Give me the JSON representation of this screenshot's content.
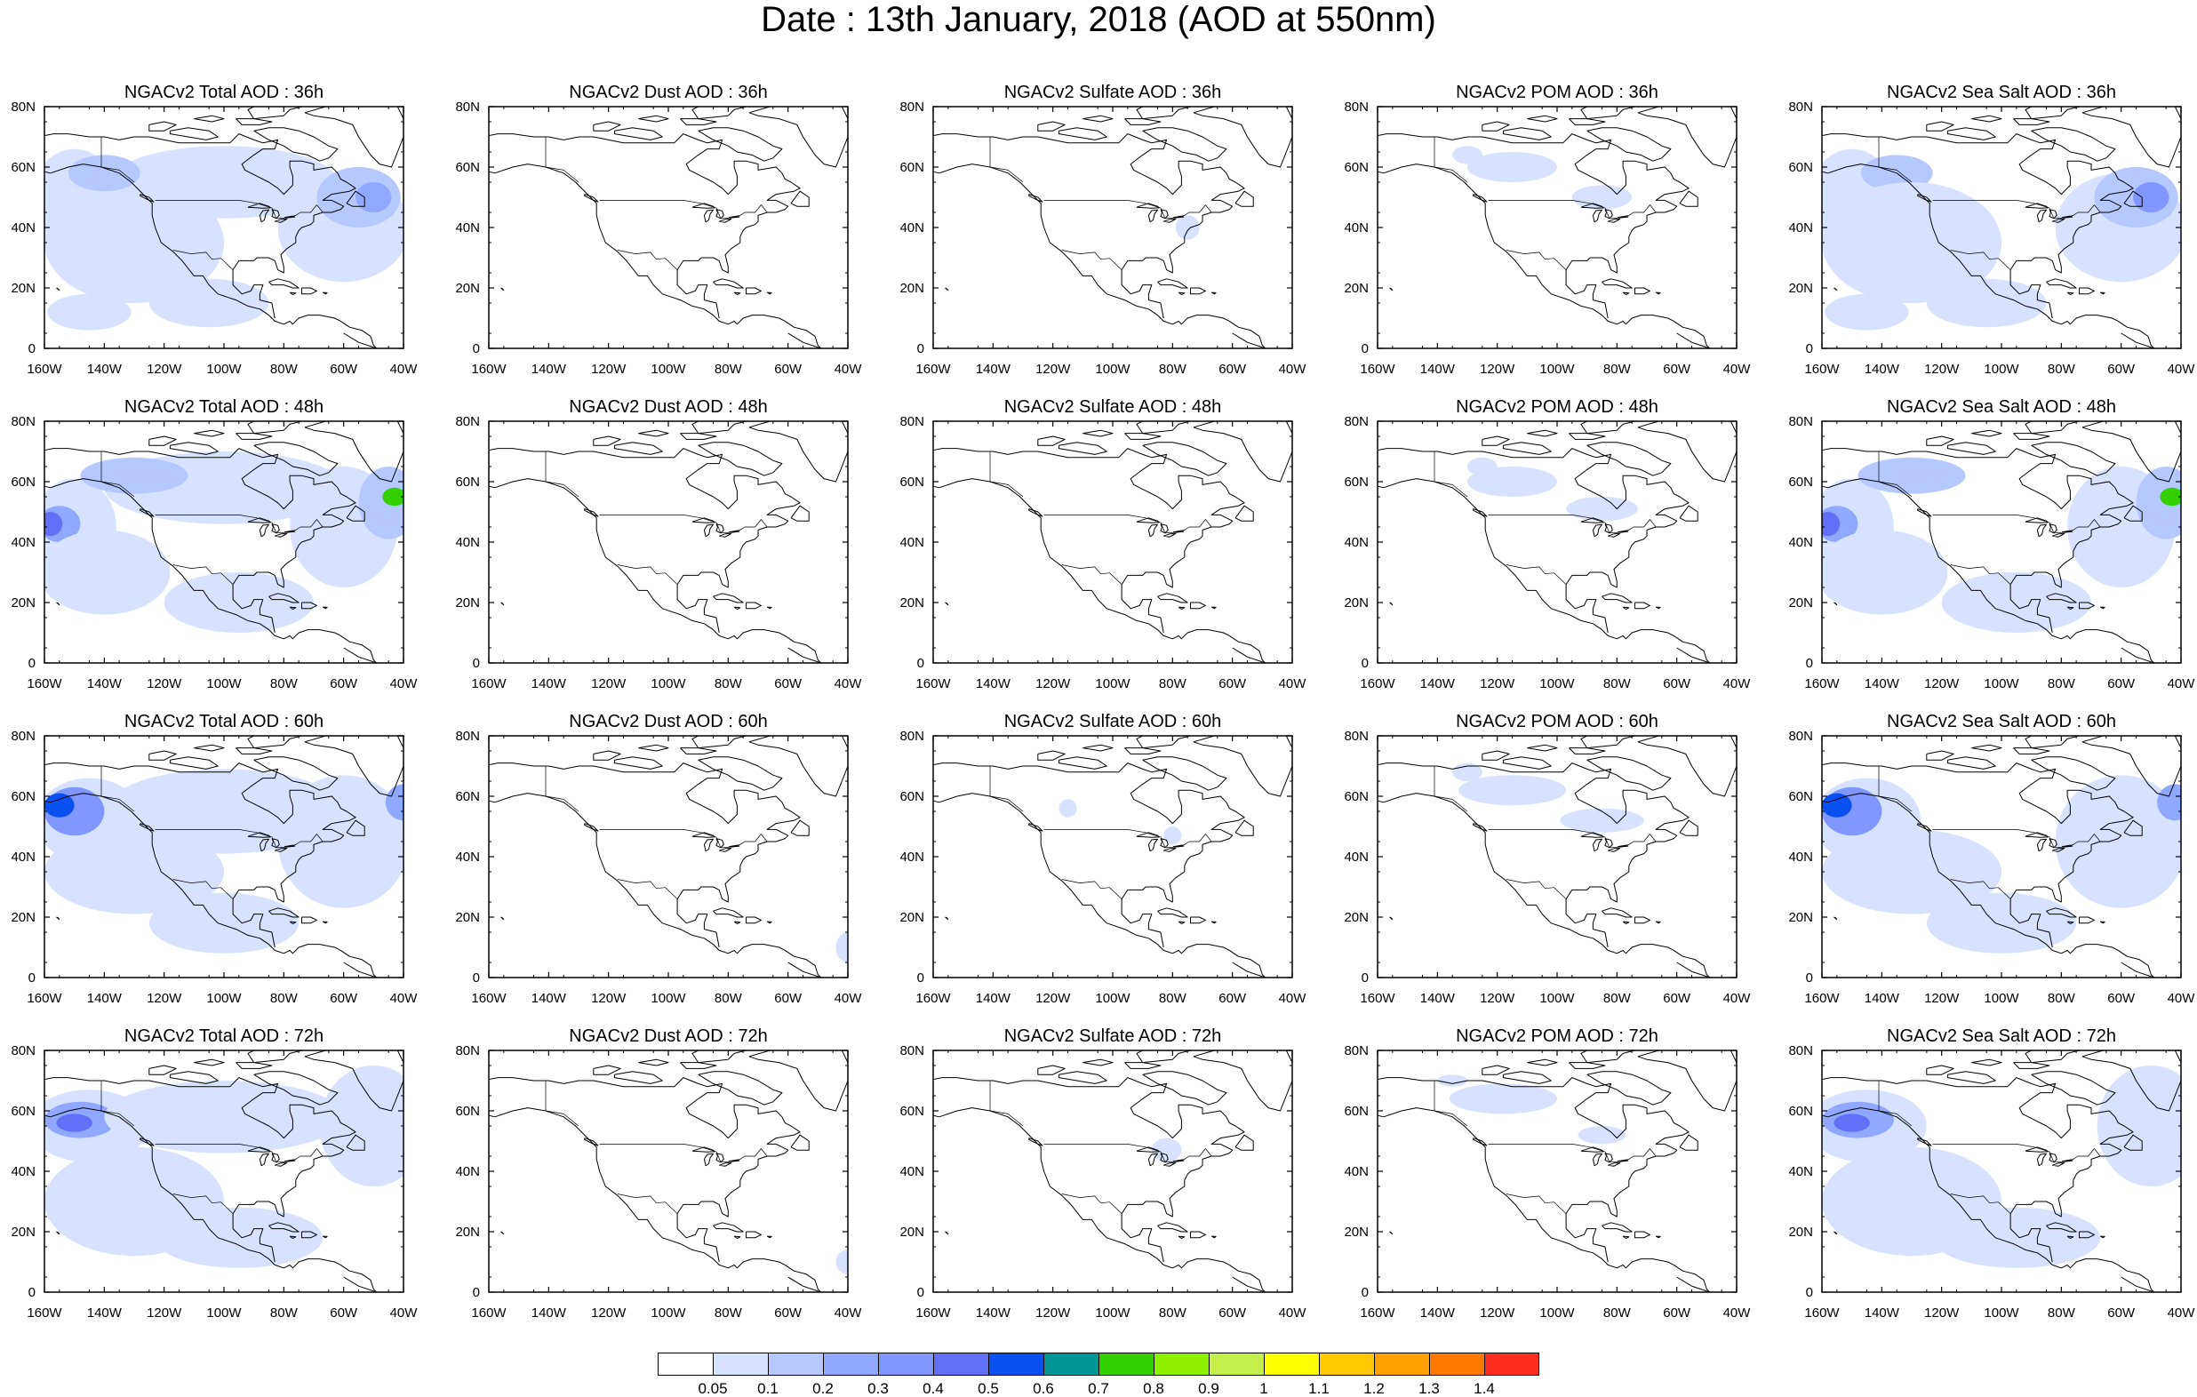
{
  "title": "Date : 13th January, 2018 (AOD at 550nm)",
  "axes": {
    "lon_labels": [
      "160W",
      "140W",
      "120W",
      "100W",
      "80W",
      "60W",
      "40W"
    ],
    "lat_labels": [
      "0",
      "20N",
      "40N",
      "60N",
      "80N"
    ],
    "lon_range": [
      -160,
      -40
    ],
    "lat_range": [
      0,
      80
    ]
  },
  "colorbar": {
    "colors": [
      "#ffffff",
      "#d6e2ff",
      "#b5c8ff",
      "#8ea9ff",
      "#7f97ff",
      "#6170f6",
      "#0a50f0",
      "#009696",
      "#33d000",
      "#8ff000",
      "#c4f04b",
      "#ffff00",
      "#ffc800",
      "#ffa000",
      "#ff7800",
      "#ff2d1e"
    ],
    "tick_labels": [
      "0.05",
      "0.1",
      "0.2",
      "0.3",
      "0.4",
      "0.5",
      "0.6",
      "0.7",
      "0.8",
      "0.9",
      "1",
      "1.1",
      "1.2",
      "1.3",
      "1.4"
    ]
  },
  "columns": [
    "total",
    "dust",
    "sulfate",
    "pom",
    "seasalt"
  ],
  "panels": [
    {
      "title": "NGACv2 Total AOD : 36h",
      "species": "total",
      "hour": "36h"
    },
    {
      "title": "NGACv2 Dust AOD : 36h",
      "species": "dust",
      "hour": "36h"
    },
    {
      "title": "NGACv2 Sulfate AOD : 36h",
      "species": "sulfate",
      "hour": "36h"
    },
    {
      "title": "NGACv2 POM AOD : 36h",
      "species": "pom",
      "hour": "36h"
    },
    {
      "title": "NGACv2 Sea Salt AOD : 36h",
      "species": "seasalt",
      "hour": "36h"
    },
    {
      "title": "NGACv2 Total AOD : 48h",
      "species": "total",
      "hour": "48h"
    },
    {
      "title": "NGACv2 Dust AOD : 48h",
      "species": "dust",
      "hour": "48h"
    },
    {
      "title": "NGACv2 Sulfate AOD : 48h",
      "species": "sulfate",
      "hour": "48h"
    },
    {
      "title": "NGACv2 POM AOD : 48h",
      "species": "pom",
      "hour": "48h"
    },
    {
      "title": "NGACv2 Sea Salt AOD : 48h",
      "species": "seasalt",
      "hour": "48h"
    },
    {
      "title": "NGACv2 Total AOD : 60h",
      "species": "total",
      "hour": "60h"
    },
    {
      "title": "NGACv2 Dust AOD : 60h",
      "species": "dust",
      "hour": "60h"
    },
    {
      "title": "NGACv2 Sulfate AOD : 60h",
      "species": "sulfate",
      "hour": "60h"
    },
    {
      "title": "NGACv2 POM AOD : 60h",
      "species": "pom",
      "hour": "60h"
    },
    {
      "title": "NGACv2 Sea Salt AOD : 60h",
      "species": "seasalt",
      "hour": "60h"
    },
    {
      "title": "NGACv2 Total AOD : 72h",
      "species": "total",
      "hour": "72h"
    },
    {
      "title": "NGACv2 Dust AOD : 72h",
      "species": "dust",
      "hour": "72h"
    },
    {
      "title": "NGACv2 Sulfate AOD : 72h",
      "species": "sulfate",
      "hour": "72h"
    },
    {
      "title": "NGACv2 POM AOD : 72h",
      "species": "pom",
      "hour": "72h"
    },
    {
      "title": "NGACv2 Sea Salt  AOD : 72h",
      "species": "seasalt",
      "hour": "72h"
    }
  ]
}
